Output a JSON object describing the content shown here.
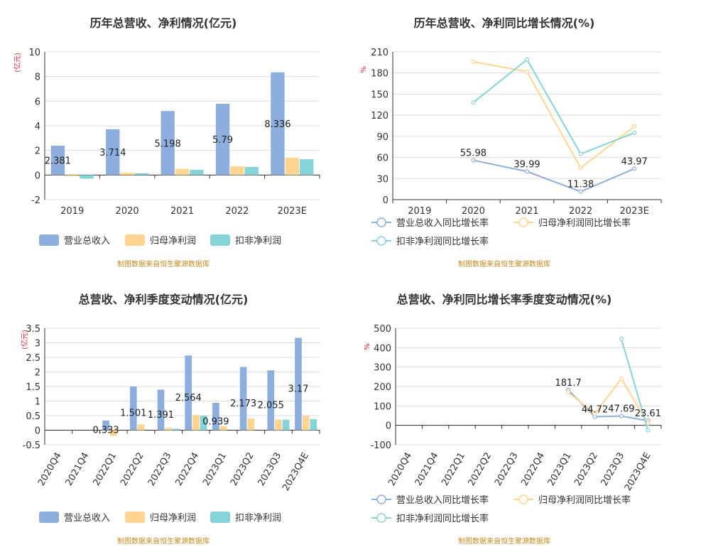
{
  "colors": {
    "revenue": "#8eaedd",
    "net_profit": "#ffd591",
    "deducted": "#86d3d8",
    "grid": "#dddddd",
    "axis": "#333333",
    "unit": "#e0282a",
    "source": "#c48a1f"
  },
  "chart_data": [
    {
      "id": "annual-amount",
      "type": "bar",
      "title": "历年总营收、净利情况(亿元)",
      "ylabel": "(亿元)",
      "ylim": [
        -2,
        10
      ],
      "yticks": [
        -2,
        0,
        2,
        4,
        6,
        8,
        10
      ],
      "categories": [
        "2019",
        "2020",
        "2021",
        "2022",
        "2023E"
      ],
      "series": [
        {
          "name": "营业总收入",
          "values": [
            2.381,
            3.714,
            5.198,
            5.79,
            8.336
          ],
          "labels": [
            "2.381",
            "3.714",
            "5.198",
            "5.79",
            "8.336"
          ]
        },
        {
          "name": "归母净利润",
          "values": [
            -0.1,
            0.18,
            0.5,
            0.7,
            1.4
          ]
        },
        {
          "name": "扣非净利润",
          "values": [
            -0.3,
            0.14,
            0.42,
            0.65,
            1.28
          ]
        }
      ],
      "legend": "bottom",
      "source": "制图数据来自恒生聚源数据库"
    },
    {
      "id": "annual-growth",
      "type": "line",
      "title": "历年总营收、净利同比增长情况(%)",
      "ylabel": "%",
      "ylim": [
        0,
        210
      ],
      "yticks": [
        0,
        30,
        60,
        90,
        120,
        150,
        180,
        210
      ],
      "categories": [
        "2019",
        "2020",
        "2021",
        "2022",
        "2023E"
      ],
      "series": [
        {
          "name": "营业总收入同比增长率",
          "values": [
            null,
            55.98,
            39.99,
            11.38,
            43.97
          ],
          "labels": [
            null,
            "55.98",
            "39.99",
            "11.38",
            "43.97"
          ]
        },
        {
          "name": "归母净利润同比增长率",
          "values": [
            null,
            196,
            182,
            45,
            104
          ]
        },
        {
          "name": "扣非净利润同比增长率",
          "values": [
            null,
            138,
            199,
            65,
            95
          ]
        }
      ],
      "legend": "bottom",
      "source": "制图数据来自恒生聚源数据库"
    },
    {
      "id": "quarter-amount",
      "type": "bar",
      "title": "总营收、净利季度变动情况(亿元)",
      "ylabel": "(亿元)",
      "ylim": [
        -0.5,
        3.5
      ],
      "yticks": [
        -0.5,
        0,
        0.5,
        1,
        1.5,
        2,
        2.5,
        3,
        3.5
      ],
      "categories": [
        "2020Q4",
        "2021Q4",
        "2022Q1",
        "2022Q2",
        "2022Q3",
        "2022Q4",
        "2023Q1",
        "2023Q2",
        "2023Q3",
        "2023Q4E"
      ],
      "series": [
        {
          "name": "营业总收入",
          "values": [
            null,
            null,
            0.333,
            1.501,
            1.391,
            2.564,
            0.939,
            2.173,
            2.055,
            3.17
          ],
          "labels": [
            null,
            null,
            "0.333",
            "1.501",
            "1.391",
            "2.564",
            "0.939",
            "2.173",
            "2.055",
            "3.17"
          ]
        },
        {
          "name": "归母净利润",
          "values": [
            null,
            null,
            -0.2,
            0.2,
            0.08,
            0.52,
            0.13,
            0.4,
            0.36,
            0.5
          ]
        },
        {
          "name": "扣非净利润",
          "values": [
            null,
            null,
            null,
            null,
            0.05,
            0.5,
            null,
            null,
            0.36,
            0.38
          ]
        }
      ],
      "legend": "bottom",
      "source": "制图数据来自恒生聚源数据库"
    },
    {
      "id": "quarter-growth",
      "type": "line",
      "title": "总营收、净利同比增长率季度变动情况(%)",
      "ylabel": "%",
      "ylim": [
        -100,
        500
      ],
      "yticks": [
        -100,
        0,
        100,
        200,
        300,
        400,
        500
      ],
      "categories": [
        "2020Q4",
        "2021Q4",
        "2022Q1",
        "2022Q2",
        "2022Q3",
        "2022Q4",
        "2023Q1",
        "2023Q2",
        "2023Q3",
        "2023Q4E"
      ],
      "series": [
        {
          "name": "营业总收入同比增长率",
          "values": [
            null,
            null,
            null,
            null,
            null,
            null,
            181.7,
            44.72,
            47.69,
            23.61
          ],
          "labels": [
            null,
            null,
            null,
            null,
            null,
            null,
            "181.7",
            "44.72",
            "47.69",
            "23.61"
          ]
        },
        {
          "name": "归母净利润同比增长率",
          "values": [
            null,
            null,
            null,
            null,
            null,
            null,
            170,
            60,
            240,
            10
          ]
        },
        {
          "name": "扣非净利润同比增长率",
          "values": [
            null,
            null,
            null,
            null,
            null,
            null,
            null,
            null,
            445,
            -25
          ]
        }
      ],
      "legend": "bottom",
      "source": "制图数据来自恒生聚源数据库"
    }
  ]
}
